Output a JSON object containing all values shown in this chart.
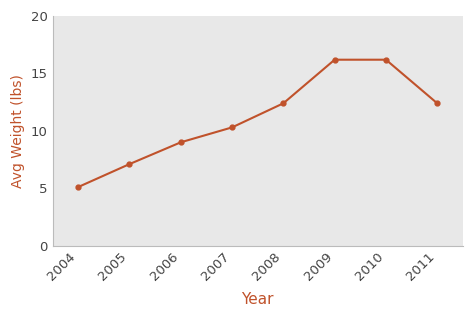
{
  "years": [
    2004,
    2005,
    2006,
    2007,
    2008,
    2009,
    2010,
    2011
  ],
  "weights": [
    5.1,
    7.1,
    9.0,
    10.3,
    12.4,
    16.2,
    16.2,
    12.4
  ],
  "line_color": "#c0522b",
  "marker": "o",
  "marker_size": 3.5,
  "line_width": 1.5,
  "xlabel": "Year",
  "ylabel": "Avg Weight (lbs)",
  "xlabel_color": "#c0522b",
  "ylabel_color": "#c0522b",
  "tick_label_color": "#444444",
  "ylim": [
    0,
    20
  ],
  "yticks": [
    0,
    5,
    10,
    15,
    20
  ],
  "plot_background_color": "#e8e8e8",
  "fig_background_color": "#ffffff",
  "xlabel_fontsize": 11,
  "ylabel_fontsize": 10,
  "tick_fontsize": 9.5
}
